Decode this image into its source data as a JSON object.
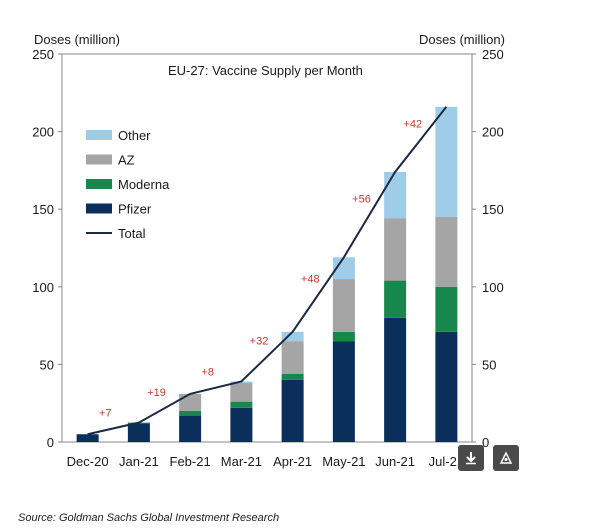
{
  "chart_data": {
    "type": "bar",
    "title": "EU-27: Vaccine Supply per Month",
    "ylabel_left": "Doses (million)",
    "ylabel_right": "Doses (million)",
    "ylim": [
      0,
      250
    ],
    "y_ticks": [
      "0",
      "50",
      "100",
      "150",
      "200",
      "250"
    ],
    "y_tick_values": [
      0,
      50,
      100,
      150,
      200,
      250
    ],
    "categories": [
      "Dec-20",
      "Jan-21",
      "Feb-21",
      "Mar-21",
      "Apr-21",
      "May-21",
      "Jun-21",
      "Jul-21"
    ],
    "stacked": true,
    "series": [
      {
        "name": "Pfizer",
        "color": "#0b2f5b",
        "values": [
          5,
          12,
          17,
          22,
          40,
          65,
          80,
          71
        ]
      },
      {
        "name": "Moderna",
        "color": "#17874b",
        "values": [
          0,
          0.5,
          3,
          4,
          4,
          6,
          24,
          29
        ]
      },
      {
        "name": "AZ",
        "color": "#a5a5a5",
        "values": [
          0,
          0,
          11,
          12,
          21,
          34,
          40,
          45
        ]
      },
      {
        "name": "Other",
        "color": "#9fcde8",
        "values": [
          0,
          0,
          0,
          1,
          6,
          14,
          30,
          71
        ]
      }
    ],
    "total": {
      "name": "Total",
      "color": "#1b2a44",
      "values": [
        5,
        12.5,
        31,
        39,
        71,
        119,
        174,
        216
      ]
    },
    "annotations": [
      "+7",
      "+19",
      "+8",
      "+32",
      "+48",
      "+56",
      "+42"
    ],
    "legend": {
      "position": "top-left",
      "order": [
        "Other",
        "AZ",
        "Moderna",
        "Pfizer",
        "Total"
      ]
    },
    "grid": false
  },
  "source": "Source: Goldman Sachs Global Investment Research"
}
